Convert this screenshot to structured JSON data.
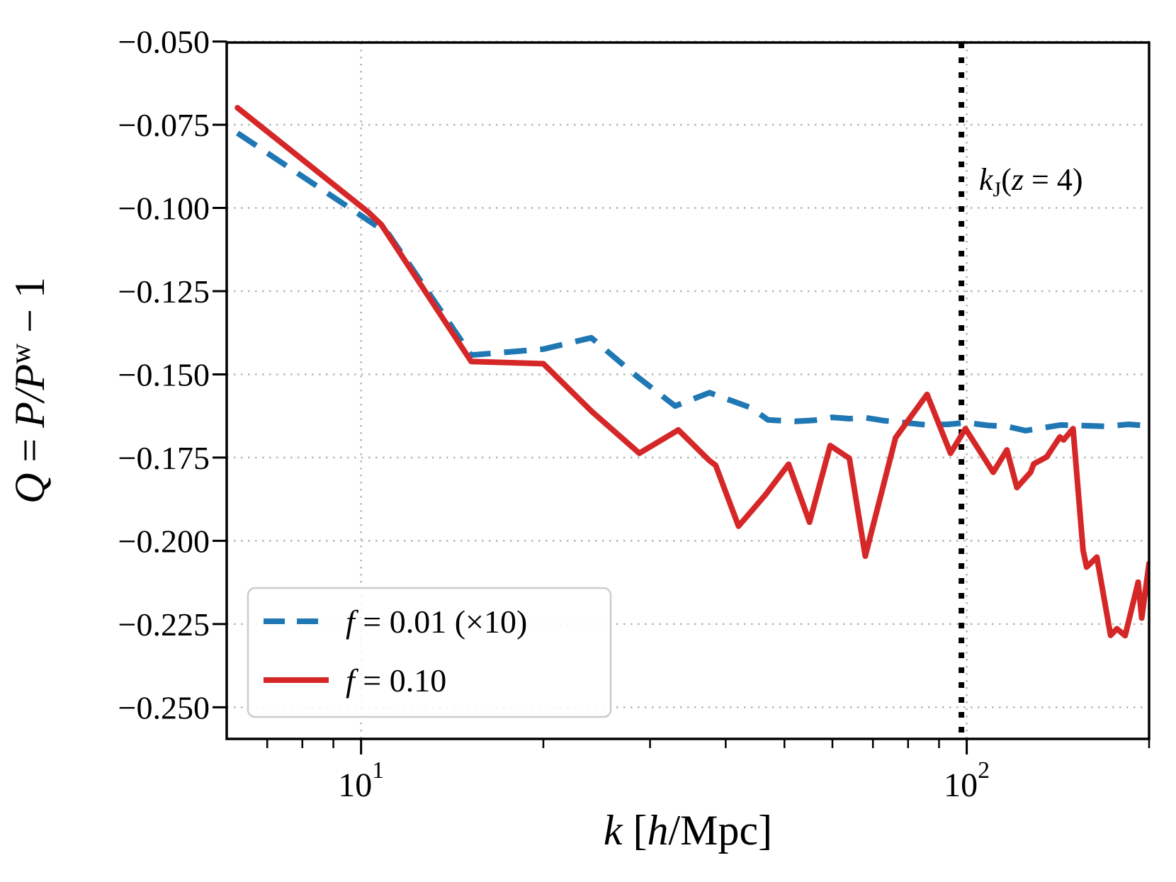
{
  "figure": {
    "background": "#ffffff",
    "axis_color": "#000000",
    "grid_color": "#b5b5b5",
    "accent_blue": "#1f77b4",
    "accent_red": "#d62728"
  },
  "chart_data": {
    "type": "line",
    "x_scale": "log",
    "xlim": [
      6,
      200
    ],
    "ylim": [
      -0.2595,
      -0.0503
    ],
    "grid": true,
    "xlabel_parts": {
      "k": "k",
      "open": " [",
      "h": "h",
      "close": "/Mpc]"
    },
    "ylabel_parts": {
      "q": "Q",
      "eq": " = ",
      "pp": "P/P",
      "sup": "w",
      "tail": " − 1"
    },
    "x_major_ticks": [
      {
        "value": 10,
        "base": "10",
        "exp": "1"
      },
      {
        "value": 100,
        "base": "10",
        "exp": "2"
      }
    ],
    "x_minor_ticks": [
      7,
      8,
      9,
      20,
      30,
      40,
      50,
      60,
      70,
      80,
      90,
      200
    ],
    "y_ticks": [
      {
        "v": -0.05,
        "label": "−0.050"
      },
      {
        "v": -0.075,
        "label": "−0.075"
      },
      {
        "v": -0.1,
        "label": "−0.100"
      },
      {
        "v": -0.125,
        "label": "−0.125"
      },
      {
        "v": -0.15,
        "label": "−0.150"
      },
      {
        "v": -0.175,
        "label": "−0.175"
      },
      {
        "v": -0.2,
        "label": "−0.200"
      },
      {
        "v": -0.225,
        "label": "−0.225"
      }
    ],
    "y_tick_bottom": {
      "v": -0.25,
      "label": "−0.250"
    },
    "vline": {
      "x": 98,
      "color": "#000000",
      "style": "dotted",
      "label_parts": {
        "k": "k",
        "sub": "J",
        "open": "(",
        "z": "z",
        "close": " = 4)"
      }
    },
    "legend": {
      "position": "lower left",
      "entries": [
        {
          "parts": {
            "f": "f",
            "rest": " = 0.01 (×10)"
          },
          "color": "#1f77b4",
          "dash": true
        },
        {
          "parts": {
            "f": "f",
            "rest": " = 0.10"
          },
          "color": "#d62728",
          "dash": false
        }
      ]
    },
    "series": [
      {
        "name": "f = 0.01 (×10)",
        "color": "#1f77b4",
        "style": "dashed",
        "points": [
          [
            6.25,
            -0.0775
          ],
          [
            11.1,
            -0.1078
          ],
          [
            15.2,
            -0.1442
          ],
          [
            20,
            -0.1424
          ],
          [
            24,
            -0.139
          ],
          [
            28.5,
            -0.1505
          ],
          [
            33,
            -0.1595
          ],
          [
            37.6,
            -0.1555
          ],
          [
            44,
            -0.16
          ],
          [
            47,
            -0.1637
          ],
          [
            52,
            -0.1641
          ],
          [
            56,
            -0.1638
          ],
          [
            60,
            -0.1629
          ],
          [
            64,
            -0.1633
          ],
          [
            68,
            -0.163
          ],
          [
            73,
            -0.1639
          ],
          [
            80,
            -0.1646
          ],
          [
            86,
            -0.1652
          ],
          [
            93,
            -0.165
          ],
          [
            100,
            -0.1645
          ],
          [
            108,
            -0.1653
          ],
          [
            117,
            -0.1657
          ],
          [
            125,
            -0.1669
          ],
          [
            134,
            -0.166
          ],
          [
            143,
            -0.1652
          ],
          [
            155,
            -0.1654
          ],
          [
            170,
            -0.1656
          ],
          [
            185,
            -0.165
          ],
          [
            200,
            -0.1655
          ]
        ]
      },
      {
        "name": "f = 0.10",
        "color": "#d62728",
        "style": "solid",
        "points": [
          [
            6.25,
            -0.0699
          ],
          [
            10.3,
            -0.1014
          ],
          [
            10.8,
            -0.105
          ],
          [
            15.2,
            -0.1461
          ],
          [
            20,
            -0.1468
          ],
          [
            24,
            -0.161
          ],
          [
            28.8,
            -0.1737
          ],
          [
            33.4,
            -0.1667
          ],
          [
            37.6,
            -0.1759
          ],
          [
            38.5,
            -0.1773
          ],
          [
            42,
            -0.1956
          ],
          [
            46.5,
            -0.1862
          ],
          [
            50.8,
            -0.177
          ],
          [
            55,
            -0.1944
          ],
          [
            59.5,
            -0.1714
          ],
          [
            64,
            -0.1752
          ],
          [
            68,
            -0.2046
          ],
          [
            76.3,
            -0.169
          ],
          [
            86,
            -0.156
          ],
          [
            94,
            -0.1737
          ],
          [
            99.5,
            -0.1663
          ],
          [
            110.6,
            -0.1794
          ],
          [
            116.5,
            -0.1727
          ],
          [
            121,
            -0.184
          ],
          [
            127.5,
            -0.1794
          ],
          [
            129,
            -0.1769
          ],
          [
            135.5,
            -0.1748
          ],
          [
            142.5,
            -0.1688
          ],
          [
            144.5,
            -0.1697
          ],
          [
            149.8,
            -0.1663
          ],
          [
            155.6,
            -0.2028
          ],
          [
            157.7,
            -0.2079
          ],
          [
            164,
            -0.2049
          ],
          [
            172.8,
            -0.2284
          ],
          [
            177,
            -0.2264
          ],
          [
            182.6,
            -0.2285
          ],
          [
            191.9,
            -0.2124
          ],
          [
            194.5,
            -0.2232
          ],
          [
            200,
            -0.2068
          ]
        ]
      }
    ]
  }
}
